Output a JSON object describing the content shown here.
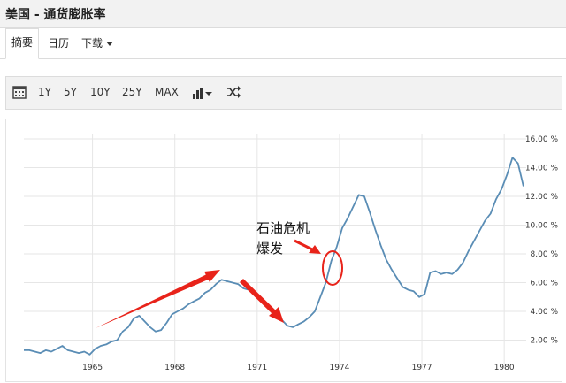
{
  "header": {
    "title": "美国 - 通货膨胀率"
  },
  "tabs": [
    {
      "label": "摘要"
    },
    {
      "label": "日历"
    },
    {
      "label": "下载"
    }
  ],
  "toolbar": {
    "icons": [
      "calendar-icon",
      "bar-chart-icon",
      "shuffle-icon"
    ],
    "ranges": [
      "1Y",
      "5Y",
      "10Y",
      "25Y",
      "MAX"
    ]
  },
  "chart_data": {
    "type": "line",
    "title": "",
    "xlabel": "",
    "ylabel": "",
    "xlim": [
      1962.5,
      1980.8
    ],
    "ylim": [
      0,
      16
    ],
    "y_ticks": [
      "2.00 %",
      "4.00 %",
      "6.00 %",
      "8.00 %",
      "10.00 %",
      "12.00 %",
      "14.00 %",
      "16.00 %"
    ],
    "x_ticks": [
      "1965",
      "1968",
      "1971",
      "1974",
      "1977",
      "1980"
    ],
    "grid": true,
    "line_color": "#5a8db5",
    "series": [
      {
        "x": [
          1962.5,
          1962.7,
          1962.9,
          1963.1,
          1963.3,
          1963.5,
          1963.7,
          1963.9,
          1964.1,
          1964.3,
          1964.5,
          1964.7,
          1964.9,
          1965.1,
          1965.3,
          1965.5,
          1965.7,
          1965.9,
          1966.1,
          1966.3,
          1966.5,
          1966.7,
          1966.9,
          1967.1,
          1967.3,
          1967.5,
          1967.7,
          1967.9,
          1968.1,
          1968.3,
          1968.5,
          1968.7,
          1968.9,
          1969.1,
          1969.3,
          1969.5,
          1969.7,
          1969.9,
          1970.1,
          1970.3,
          1970.5,
          1970.7,
          1970.9,
          1971.1,
          1971.3,
          1971.5,
          1971.7,
          1971.9,
          1972.1,
          1972.3,
          1972.5,
          1972.7,
          1972.9,
          1973.1,
          1973.3,
          1973.5,
          1973.7,
          1973.9,
          1974.1,
          1974.3,
          1974.5,
          1974.7,
          1974.9,
          1975.1,
          1975.3,
          1975.5,
          1975.7,
          1975.9,
          1976.1,
          1976.3,
          1976.5,
          1976.7,
          1976.9,
          1977.1,
          1977.3,
          1977.5,
          1977.7,
          1977.9,
          1978.1,
          1978.3,
          1978.5,
          1978.7,
          1978.9,
          1979.1,
          1979.3,
          1979.5,
          1979.7,
          1979.9,
          1980.1,
          1980.3,
          1980.5,
          1980.7
        ],
        "values": [
          1.3,
          1.3,
          1.2,
          1.1,
          1.3,
          1.2,
          1.4,
          1.6,
          1.3,
          1.2,
          1.1,
          1.2,
          1.0,
          1.4,
          1.6,
          1.7,
          1.9,
          2.0,
          2.6,
          2.9,
          3.5,
          3.7,
          3.3,
          2.9,
          2.6,
          2.7,
          3.2,
          3.8,
          4.0,
          4.2,
          4.5,
          4.7,
          4.9,
          5.3,
          5.5,
          5.9,
          6.2,
          6.1,
          6.0,
          5.9,
          5.6,
          5.5,
          5.2,
          4.8,
          4.4,
          4.2,
          3.9,
          3.4,
          3.0,
          2.9,
          3.1,
          3.3,
          3.6,
          4.0,
          5.0,
          6.0,
          7.5,
          8.5,
          9.8,
          10.5,
          11.3,
          12.1,
          12.0,
          10.9,
          9.7,
          8.6,
          7.6,
          6.9,
          6.3,
          5.7,
          5.5,
          5.4,
          5.0,
          5.2,
          6.7,
          6.8,
          6.6,
          6.7,
          6.6,
          6.9,
          7.4,
          8.2,
          8.9,
          9.6,
          10.3,
          10.8,
          11.8,
          12.5,
          13.5,
          14.7,
          14.3,
          12.7
        ]
      }
    ],
    "annotation": {
      "text_line1": "石油危机",
      "text_line2": "爆发"
    }
  }
}
